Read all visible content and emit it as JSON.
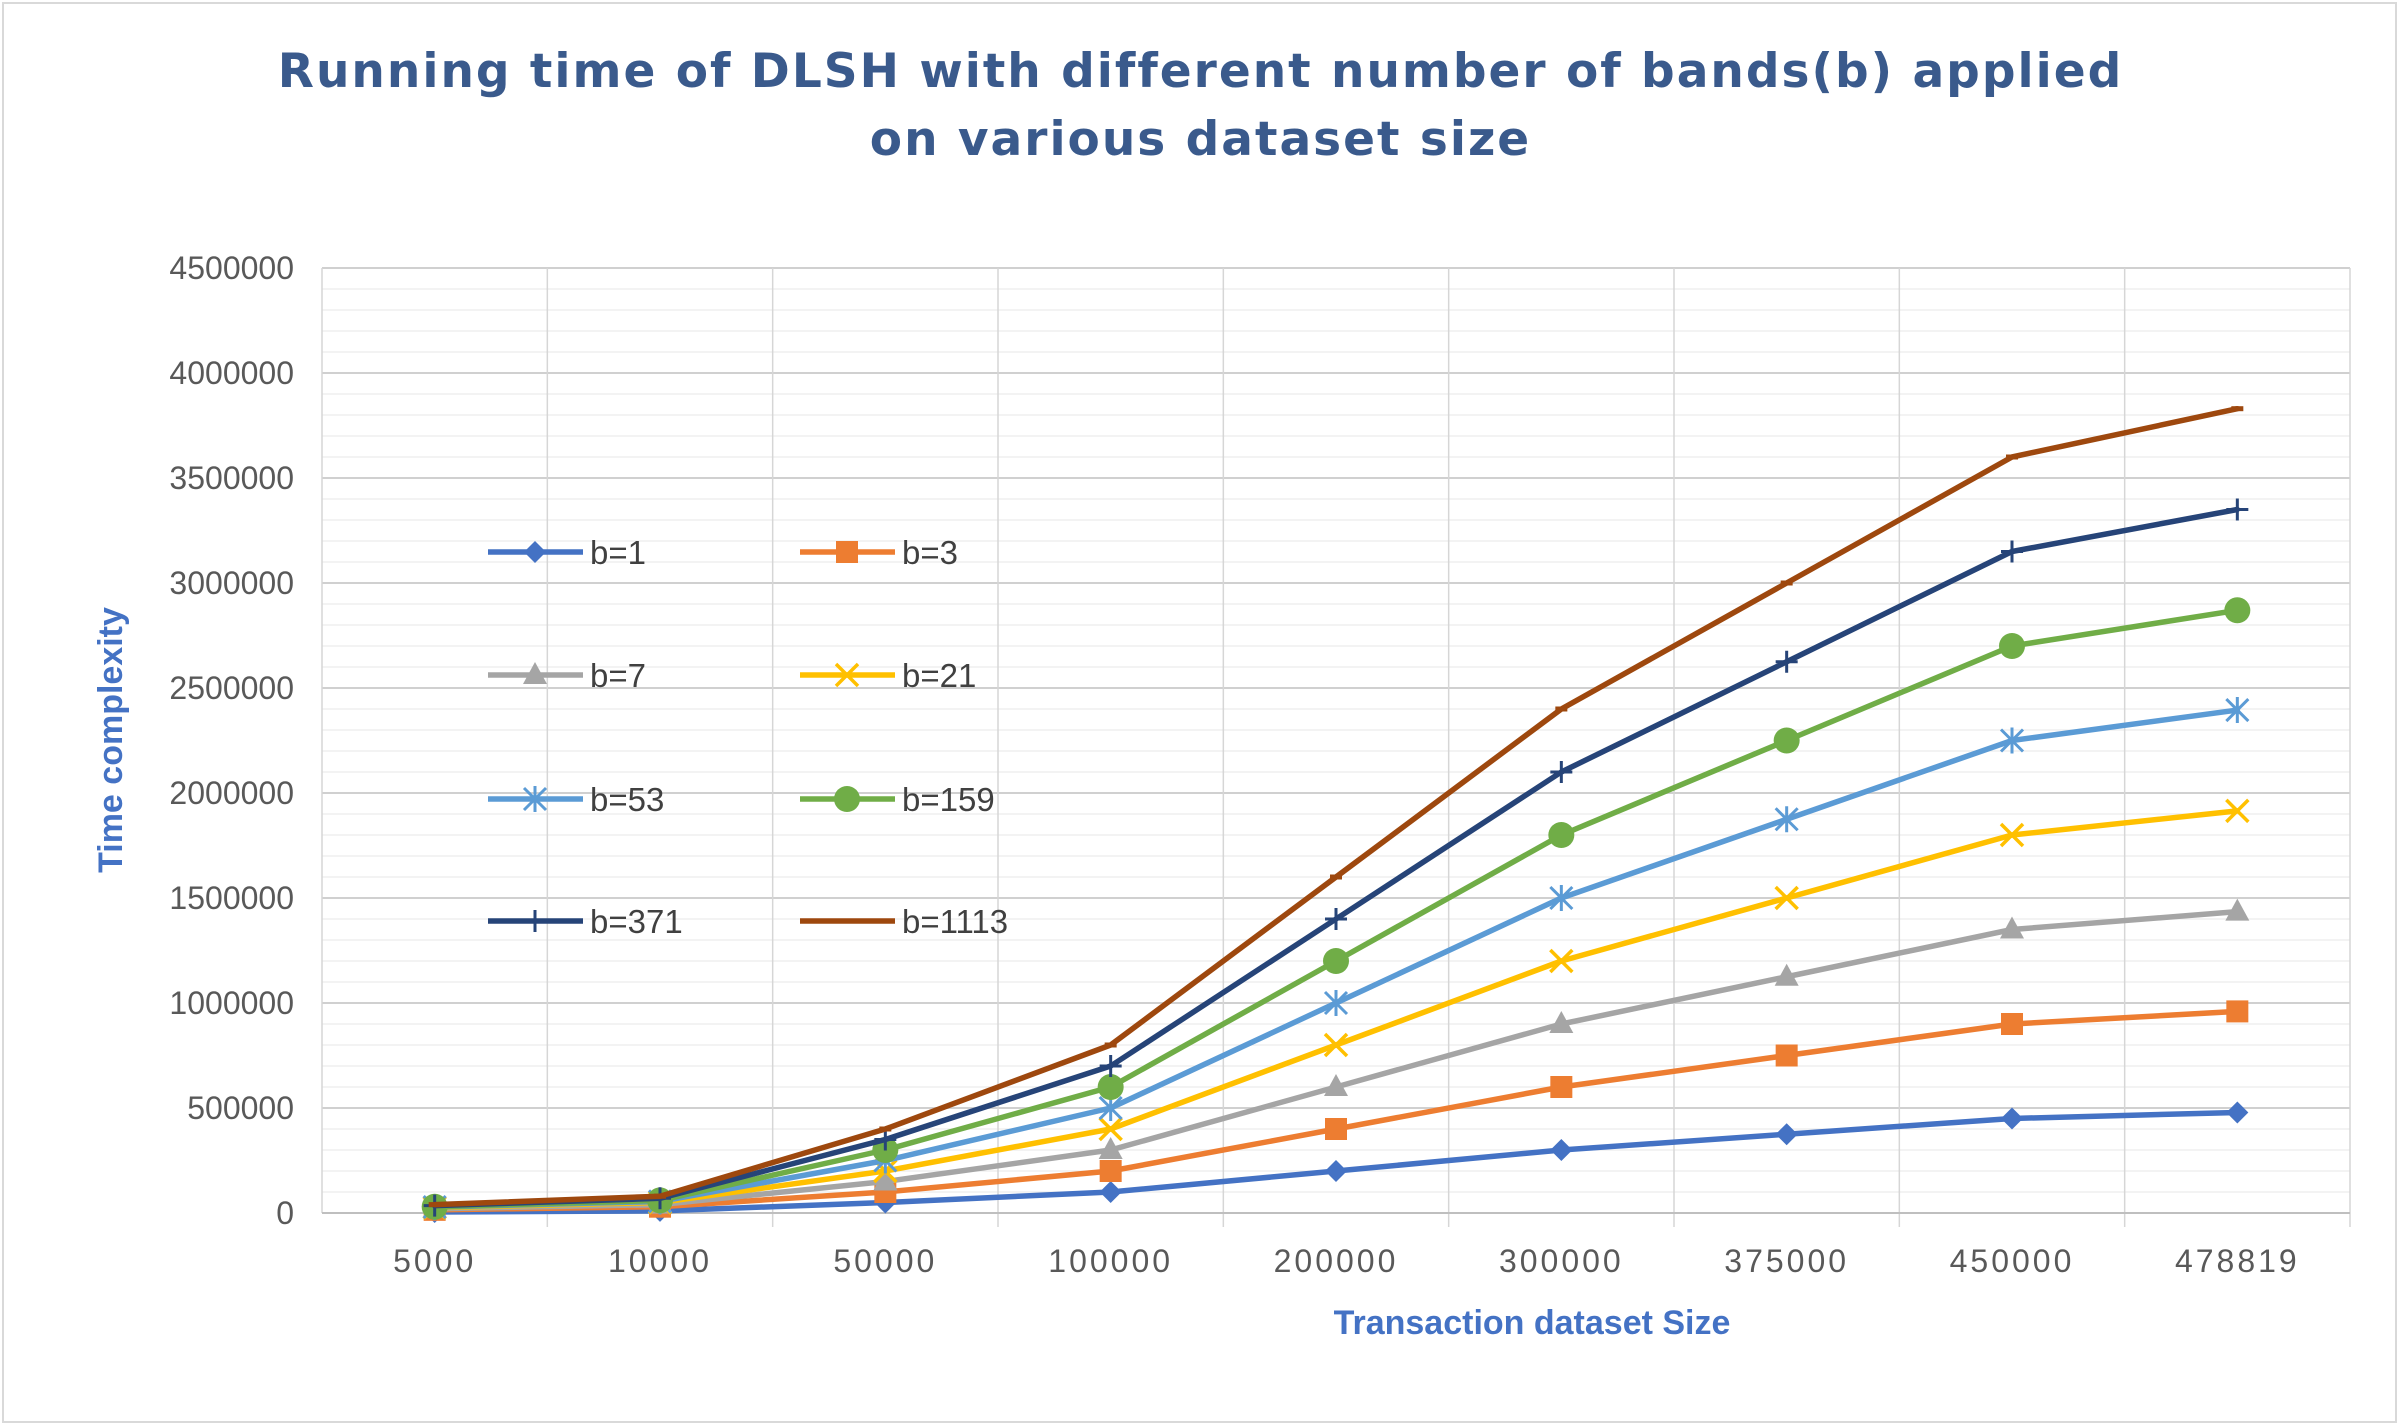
{
  "chart_data": {
    "type": "line",
    "title_line1": "Running time of DLSH with different number of bands(b)  applied",
    "title_line2": "on various  dataset size",
    "xlabel": "Transaction dataset Size",
    "ylabel": "Time complexity",
    "categories": [
      "5000",
      "10000",
      "50000",
      "100000",
      "200000",
      "300000",
      "375000",
      "450000",
      "478819"
    ],
    "ylim": [
      0,
      4500000
    ],
    "yticks": [
      "0",
      "500000",
      "1000000",
      "1500000",
      "2000000",
      "2500000",
      "3000000",
      "3500000",
      "4000000",
      "4500000"
    ],
    "grid": true,
    "legend_position": "upper-left-inside",
    "series": [
      {
        "name": "b=1",
        "color": "#4472c4",
        "marker": "diamond",
        "values": [
          5000,
          10000,
          50000,
          100000,
          200000,
          300000,
          375000,
          450000,
          478819
        ]
      },
      {
        "name": "b=3",
        "color": "#ed7d31",
        "marker": "square",
        "values": [
          15000,
          30000,
          100000,
          200000,
          400000,
          600000,
          750000,
          900000,
          960000
        ]
      },
      {
        "name": "b=7",
        "color": "#a5a5a5",
        "marker": "triangle",
        "values": [
          20000,
          40000,
          150000,
          300000,
          600000,
          900000,
          1125000,
          1350000,
          1435000
        ]
      },
      {
        "name": "b=21",
        "color": "#ffc000",
        "marker": "x",
        "values": [
          25000,
          50000,
          200000,
          400000,
          800000,
          1200000,
          1500000,
          1800000,
          1915000
        ]
      },
      {
        "name": "b=53",
        "color": "#5b9bd5",
        "marker": "star",
        "values": [
          28000,
          55000,
          250000,
          500000,
          1000000,
          1500000,
          1875000,
          2250000,
          2395000
        ]
      },
      {
        "name": "b=159",
        "color": "#70ad47",
        "marker": "circle",
        "values": [
          30000,
          60000,
          300000,
          600000,
          1200000,
          1800000,
          2250000,
          2700000,
          2870000
        ]
      },
      {
        "name": "b=371",
        "color": "#264478",
        "marker": "plus",
        "values": [
          35000,
          70000,
          350000,
          700000,
          1400000,
          2100000,
          2625000,
          3150000,
          3350000
        ]
      },
      {
        "name": "b=1113",
        "color": "#9e480e",
        "marker": "dash",
        "values": [
          40000,
          80000,
          400000,
          800000,
          1600000,
          2400000,
          3000000,
          3600000,
          3830000
        ]
      }
    ]
  }
}
